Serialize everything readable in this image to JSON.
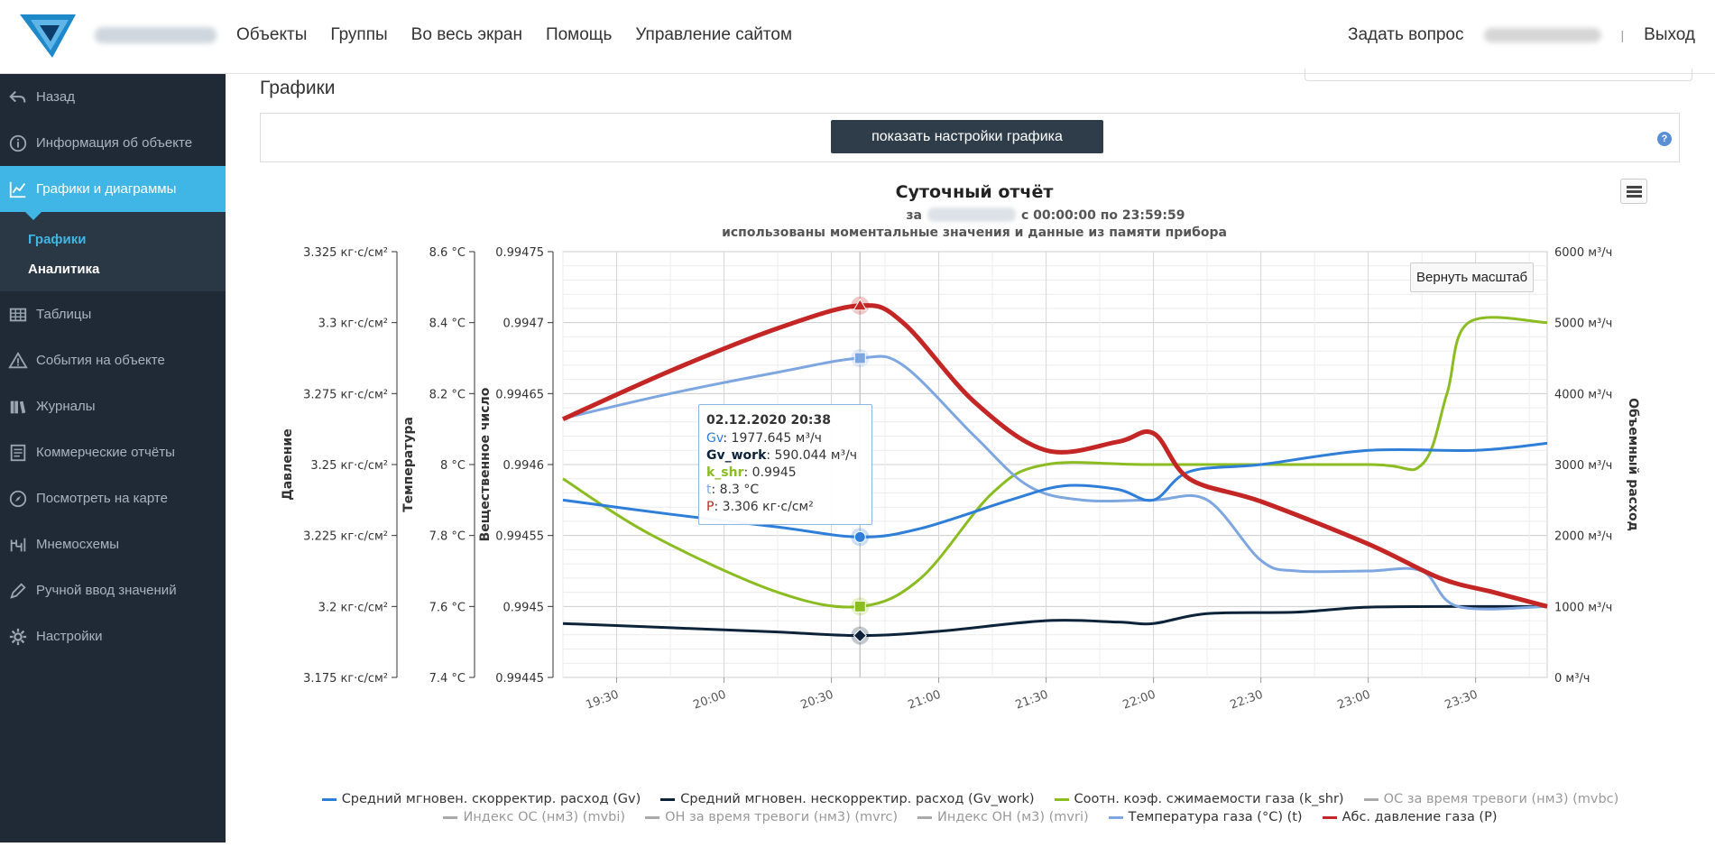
{
  "header": {
    "nav": [
      "Объекты",
      "Группы",
      "Во весь экран",
      "Помощь",
      "Управление сайтом"
    ],
    "ask_question": "Задать вопрос",
    "separator": "|",
    "logout": "Выход"
  },
  "sidebar": {
    "items": [
      {
        "label": "Назад",
        "icon": "undo-icon"
      },
      {
        "label": "Информация об объекте",
        "icon": "info-icon"
      },
      {
        "label": "Графики и диаграммы",
        "icon": "chart-icon",
        "active": true
      },
      {
        "label": "Таблицы",
        "icon": "table-icon"
      },
      {
        "label": "События на объекте",
        "icon": "warning-icon"
      },
      {
        "label": "Журналы",
        "icon": "books-icon"
      },
      {
        "label": "Коммерческие отчёты",
        "icon": "report-icon"
      },
      {
        "label": "Посмотреть на карте",
        "icon": "compass-icon"
      },
      {
        "label": "Мнемосхемы",
        "icon": "scheme-icon"
      },
      {
        "label": "Ручной ввод значений",
        "icon": "pen-icon"
      },
      {
        "label": "Настройки",
        "icon": "gear-icon"
      }
    ],
    "sub_items": [
      "Графики",
      "Аналитика"
    ]
  },
  "page": {
    "title": "Графики",
    "settings_button": "показать настройки графика",
    "help": "?"
  },
  "chart_data": {
    "type": "line",
    "title": "Суточный отчёт",
    "subtitle_prefix": "за",
    "subtitle_suffix": "с 00:00:00 по 23:59:59",
    "subtitle2": "использованы моментальные значения и данные из памяти прибора",
    "reset_zoom": "Вернуть масштаб",
    "x_ticks": [
      "19:30",
      "20:00",
      "20:30",
      "21:00",
      "21:30",
      "22:00",
      "22:30",
      "23:00",
      "23:30"
    ],
    "axes": {
      "pressure": {
        "title": "Давление",
        "ticks": [
          "3.325 кг·с/см²",
          "3.3 кг·с/см²",
          "3.275 кг·с/см²",
          "3.25 кг·с/см²",
          "3.225 кг·с/см²",
          "3.2 кг·с/см²",
          "3.175 кг·с/см²"
        ],
        "range": [
          3.175,
          3.325
        ]
      },
      "temperature": {
        "title": "Температура",
        "ticks": [
          "8.6 °C",
          "8.4 °C",
          "8.2 °C",
          "8 °C",
          "7.8 °C",
          "7.6 °C",
          "7.4 °C"
        ],
        "range": [
          7.4,
          8.6
        ]
      },
      "substance": {
        "title": "Вещественное число",
        "ticks": [
          "0.99475",
          "0.9947",
          "0.99465",
          "0.9946",
          "0.99455",
          "0.9945",
          "0.99445"
        ],
        "range": [
          0.99445,
          0.99475
        ]
      },
      "flow": {
        "title": "Объемный расход",
        "ticks": [
          "6000 м³/ч",
          "5000 м³/ч",
          "4000 м³/ч",
          "3000 м³/ч",
          "2000 м³/ч",
          "1000 м³/ч",
          "0 м³/ч"
        ],
        "range": [
          0,
          6000
        ]
      }
    },
    "x_range": [
      "19:15",
      "23:50"
    ],
    "series": [
      {
        "key": "Gv",
        "color": "#2f7ed8",
        "axis": "flow",
        "points": [
          [
            "19:15",
            2500
          ],
          [
            "19:45",
            2300
          ],
          [
            "20:15",
            2120
          ],
          [
            "20:38",
            1978
          ],
          [
            "20:55",
            2100
          ],
          [
            "21:20",
            2500
          ],
          [
            "21:35",
            2700
          ],
          [
            "21:50",
            2650
          ],
          [
            "22:00",
            2500
          ],
          [
            "22:10",
            2900
          ],
          [
            "22:30",
            3000
          ],
          [
            "23:00",
            3200
          ],
          [
            "23:30",
            3200
          ],
          [
            "23:50",
            3300
          ]
        ]
      },
      {
        "key": "Gv_work",
        "color": "#0d233a",
        "axis": "flow",
        "points": [
          [
            "19:15",
            760
          ],
          [
            "19:45",
            700
          ],
          [
            "20:15",
            640
          ],
          [
            "20:38",
            590
          ],
          [
            "21:00",
            650
          ],
          [
            "21:30",
            800
          ],
          [
            "21:50",
            780
          ],
          [
            "22:00",
            760
          ],
          [
            "22:15",
            900
          ],
          [
            "22:40",
            920
          ],
          [
            "23:00",
            990
          ],
          [
            "23:30",
            1000
          ],
          [
            "23:50",
            1000
          ]
        ]
      },
      {
        "key": "k_shr",
        "color": "#8bbc21",
        "axis": "substance",
        "points": [
          [
            "19:15",
            0.99459
          ],
          [
            "19:40",
            0.99455
          ],
          [
            "20:15",
            0.99451
          ],
          [
            "20:38",
            0.9945
          ],
          [
            "20:55",
            0.99452
          ],
          [
            "21:15",
            0.99458
          ],
          [
            "21:30",
            0.9946
          ],
          [
            "22:00",
            0.9946
          ],
          [
            "23:00",
            0.9946
          ],
          [
            "23:15",
            0.9946
          ],
          [
            "23:22",
            0.99465
          ],
          [
            "23:28",
            0.9947
          ],
          [
            "23:50",
            0.9947
          ]
        ]
      },
      {
        "key": "t",
        "color": "#7ea6e0",
        "axis": "temperature",
        "points": [
          [
            "19:15",
            8.13
          ],
          [
            "19:45",
            8.2
          ],
          [
            "20:15",
            8.26
          ],
          [
            "20:38",
            8.3
          ],
          [
            "20:50",
            8.28
          ],
          [
            "21:10",
            8.08
          ],
          [
            "21:25",
            7.94
          ],
          [
            "21:40",
            7.9
          ],
          [
            "22:00",
            7.9
          ],
          [
            "22:15",
            7.9
          ],
          [
            "22:30",
            7.73
          ],
          [
            "22:40",
            7.7
          ],
          [
            "23:00",
            7.7
          ],
          [
            "23:15",
            7.7
          ],
          [
            "23:25",
            7.6
          ],
          [
            "23:50",
            7.6
          ]
        ]
      },
      {
        "key": "P",
        "color": "#c42525",
        "axis": "pressure",
        "points": [
          [
            "19:15",
            3.266
          ],
          [
            "19:45",
            3.283
          ],
          [
            "20:15",
            3.298
          ],
          [
            "20:38",
            3.306
          ],
          [
            "20:50",
            3.3
          ],
          [
            "21:10",
            3.272
          ],
          [
            "21:30",
            3.255
          ],
          [
            "21:50",
            3.258
          ],
          [
            "22:00",
            3.261
          ],
          [
            "22:10",
            3.245
          ],
          [
            "22:30",
            3.237
          ],
          [
            "23:00",
            3.222
          ],
          [
            "23:20",
            3.21
          ],
          [
            "23:35",
            3.205
          ],
          [
            "23:50",
            3.2
          ]
        ]
      }
    ],
    "legend": [
      {
        "label": "Средний мгновен. скорректир. расход (Gv)",
        "color": "#2f7ed8",
        "visible": true
      },
      {
        "label": "Средний мгновен. нескорректир. расход (Gv_work)",
        "color": "#0d233a",
        "visible": true
      },
      {
        "label": "Соотн. коэф. сжимаемости газа (k_shr)",
        "color": "#8bbc21",
        "visible": true
      },
      {
        "label": "ОС за время тревоги (нм3) (mvbc)",
        "color": "#999999",
        "visible": false
      },
      {
        "label": "Индекс ОС (нм3) (mvbi)",
        "color": "#999999",
        "visible": false
      },
      {
        "label": "ОН за время тревоги (нм3) (mvrc)",
        "color": "#999999",
        "visible": false
      },
      {
        "label": "Индекс ОН (м3) (mvri)",
        "color": "#999999",
        "visible": false
      },
      {
        "label": "Температура газа (°C) (t)",
        "color": "#7ea6e0",
        "visible": true
      },
      {
        "label": "Абс. давление газа (P)",
        "color": "#c42525",
        "visible": true
      }
    ],
    "tooltip": {
      "date": "02.12.2020 20:38",
      "lines": [
        {
          "name": "Gv",
          "value": ": 1977.645 м³/ч",
          "color": "#2f7ed8",
          "bold": false
        },
        {
          "name": "Gv_work",
          "value": ": 590.044 м³/ч",
          "color": "#0d233a",
          "bold": true
        },
        {
          "name": "k_shr",
          "value": ": 0.9945",
          "color": "#8bbc21",
          "bold": true
        },
        {
          "name": "t",
          "value": ": 8.3 °C",
          "color": "#7ea6e0",
          "bold": false
        },
        {
          "name": "P",
          "value": ": 3.306 кг·с/см²",
          "color": "#c42525",
          "bold": false
        }
      ]
    },
    "crosshair_x": "20:38"
  }
}
